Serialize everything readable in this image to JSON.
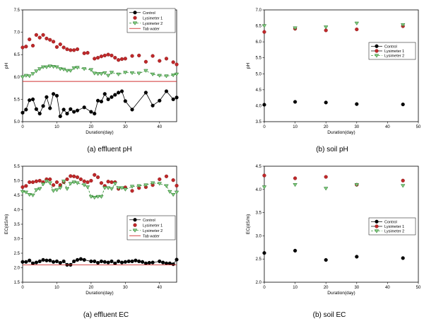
{
  "chart_data": [
    {
      "type": "scatter",
      "caption": "(a)  effluent  pH",
      "xlabel": "Duration(day)",
      "ylabel": "pH",
      "xlim": [
        0,
        45
      ],
      "ylim": [
        5.0,
        7.5
      ],
      "xticks": [
        0,
        10,
        20,
        30,
        40
      ],
      "yticks": [
        5.0,
        5.5,
        6.0,
        6.5,
        7.0,
        7.5
      ],
      "legend_position": "top-right",
      "series": [
        {
          "name": "Control",
          "marker": "circle",
          "color": "#000000",
          "line": true,
          "x": [
            0,
            1,
            2,
            3,
            4,
            5,
            6,
            7,
            8,
            9,
            10,
            11,
            12,
            13,
            14,
            15,
            16,
            18,
            20,
            21,
            22,
            23,
            24,
            25,
            26,
            27,
            28,
            29,
            30,
            32,
            36,
            38,
            40,
            42,
            44,
            45
          ],
          "y": [
            5.2,
            5.27,
            5.48,
            5.5,
            5.28,
            5.18,
            5.35,
            5.55,
            5.3,
            5.62,
            5.58,
            5.12,
            5.27,
            5.18,
            5.28,
            5.22,
            5.25,
            5.32,
            5.22,
            5.18,
            5.47,
            5.45,
            5.62,
            5.5,
            5.55,
            5.6,
            5.65,
            5.68,
            5.46,
            5.27,
            5.65,
            5.36,
            5.47,
            5.68,
            5.5,
            5.54
          ]
        },
        {
          "name": "Lysimeter 1",
          "marker": "circle",
          "color": "#c0282a",
          "line": false,
          "x": [
            0,
            1,
            2,
            3,
            4,
            5,
            6,
            7,
            8,
            9,
            10,
            11,
            12,
            13,
            14,
            15,
            16,
            18,
            19,
            21,
            22,
            23,
            24,
            25,
            26,
            27,
            28,
            29,
            30,
            32,
            34,
            36,
            38,
            40,
            42,
            44,
            45
          ],
          "y": [
            6.66,
            6.68,
            6.84,
            6.7,
            6.94,
            6.88,
            6.94,
            6.86,
            6.83,
            6.79,
            6.67,
            6.73,
            6.66,
            6.62,
            6.6,
            6.6,
            6.62,
            6.53,
            6.54,
            6.41,
            6.43,
            6.46,
            6.48,
            6.5,
            6.48,
            6.43,
            6.38,
            6.4,
            6.41,
            6.47,
            6.48,
            6.34,
            6.47,
            6.36,
            6.41,
            6.33,
            6.28
          ]
        },
        {
          "name": "Lysimeter 2",
          "marker": "triangle-down",
          "color": "#1f8a1f",
          "line": true,
          "x": [
            0,
            1,
            2,
            3,
            4,
            5,
            6,
            7,
            8,
            9,
            10,
            11,
            12,
            13,
            14,
            15,
            16,
            18,
            20,
            21,
            22,
            23,
            24,
            25,
            26,
            28,
            30,
            32,
            34,
            36,
            38,
            40,
            42,
            44,
            45
          ],
          "y": [
            6.0,
            6.03,
            6.02,
            6.07,
            6.13,
            6.18,
            6.22,
            6.22,
            6.24,
            6.23,
            6.22,
            6.18,
            6.17,
            6.14,
            6.14,
            6.2,
            6.21,
            6.18,
            6.16,
            6.08,
            6.07,
            6.07,
            6.09,
            6.03,
            6.1,
            6.06,
            6.1,
            6.09,
            6.08,
            6.14,
            6.06,
            6.03,
            6.02,
            6.04,
            6.06
          ]
        },
        {
          "name": "Tab water",
          "marker": "none",
          "color": "#d03030",
          "line": true,
          "constant": 5.9
        }
      ]
    },
    {
      "type": "scatter",
      "caption": "(b)  soil  pH",
      "xlabel": "Duration(day)",
      "ylabel": "pH",
      "xlim": [
        0,
        50
      ],
      "ylim": [
        3.5,
        7.0
      ],
      "xticks": [
        0,
        10,
        20,
        30,
        40,
        50
      ],
      "yticks": [
        3.5,
        4.0,
        4.5,
        5.0,
        5.5,
        6.0,
        6.5,
        7.0
      ],
      "legend_position": "middle-right",
      "series": [
        {
          "name": "Control",
          "marker": "circle",
          "color": "#000000",
          "x": [
            0,
            10,
            20,
            30,
            45
          ],
          "y": [
            4.03,
            4.12,
            4.1,
            4.05,
            4.04
          ]
        },
        {
          "name": "Lysimeter 1",
          "marker": "circle",
          "color": "#c0282a",
          "x": [
            0,
            10,
            20,
            30,
            45
          ],
          "y": [
            6.31,
            6.41,
            6.36,
            6.39,
            6.49
          ]
        },
        {
          "name": "Lysimeter 2",
          "marker": "triangle-down",
          "color": "#1f8a1f",
          "x": [
            0,
            10,
            20,
            30,
            45
          ],
          "y": [
            6.5,
            6.43,
            6.46,
            6.58,
            6.53
          ]
        }
      ]
    },
    {
      "type": "scatter",
      "caption": "(a)  effluent  EC",
      "xlabel": "Duration(day)",
      "ylabel": "EC(dS/m)",
      "xlim": [
        0,
        45
      ],
      "ylim": [
        1.5,
        5.5
      ],
      "xticks": [
        0,
        10,
        20,
        30,
        40
      ],
      "yticks": [
        1.5,
        2.0,
        2.5,
        3.0,
        3.5,
        4.0,
        4.5,
        5.0,
        5.5
      ],
      "legend_position": "middle-right",
      "series": [
        {
          "name": "Control",
          "marker": "circle",
          "color": "#000000",
          "line": true,
          "x": [
            0,
            1,
            2,
            3,
            4,
            5,
            6,
            7,
            8,
            9,
            10,
            11,
            12,
            13,
            14,
            15,
            16,
            17,
            18,
            20,
            21,
            22,
            23,
            24,
            25,
            26,
            27,
            28,
            29,
            30,
            31,
            32,
            33,
            34,
            35,
            36,
            37,
            38,
            40,
            41,
            42,
            43,
            44,
            45
          ],
          "y": [
            2.2,
            2.2,
            2.25,
            2.15,
            2.18,
            2.22,
            2.27,
            2.25,
            2.25,
            2.2,
            2.22,
            2.17,
            2.22,
            2.1,
            2.1,
            2.22,
            2.27,
            2.3,
            2.27,
            2.22,
            2.22,
            2.17,
            2.22,
            2.2,
            2.18,
            2.22,
            2.15,
            2.22,
            2.18,
            2.2,
            2.22,
            2.22,
            2.25,
            2.22,
            2.2,
            2.15,
            2.17,
            2.18,
            2.22,
            2.18,
            2.15,
            2.15,
            2.12,
            2.28
          ]
        },
        {
          "name": "Lysimeter 1",
          "marker": "circle",
          "color": "#c0282a",
          "line": false,
          "x": [
            0,
            1,
            2,
            3,
            4,
            5,
            6,
            7,
            8,
            9,
            10,
            11,
            12,
            13,
            14,
            15,
            16,
            17,
            18,
            19,
            20,
            21,
            22,
            23,
            24,
            25,
            26,
            27,
            28,
            30,
            32,
            34,
            36,
            38,
            40,
            42,
            44,
            45
          ],
          "y": [
            4.78,
            4.82,
            4.95,
            4.95,
            4.98,
            5.0,
            4.95,
            5.05,
            5.05,
            4.85,
            4.95,
            4.85,
            4.95,
            5.05,
            5.16,
            5.15,
            5.12,
            5.05,
            4.98,
            4.95,
            5.0,
            5.2,
            5.12,
            4.92,
            4.82,
            4.97,
            4.95,
            4.95,
            4.72,
            4.77,
            4.65,
            4.75,
            4.78,
            4.85,
            5.05,
            5.15,
            5.02,
            4.83
          ]
        },
        {
          "name": "Lysimeter 2",
          "marker": "triangle-down",
          "color": "#1f8a1f",
          "line": true,
          "x": [
            0,
            1,
            2,
            3,
            4,
            5,
            6,
            7,
            8,
            9,
            10,
            11,
            12,
            13,
            14,
            15,
            16,
            18,
            19,
            20,
            21,
            22,
            23,
            24,
            25,
            26,
            27,
            28,
            29,
            30,
            32,
            34,
            36,
            38,
            40,
            42,
            43,
            44,
            45
          ],
          "y": [
            4.62,
            4.6,
            4.52,
            4.5,
            4.68,
            4.72,
            4.88,
            4.98,
            4.92,
            4.65,
            4.68,
            4.75,
            4.98,
            4.72,
            4.9,
            4.95,
            4.92,
            4.85,
            4.78,
            4.45,
            4.42,
            4.45,
            4.45,
            4.75,
            4.75,
            4.72,
            4.9,
            4.75,
            4.75,
            4.7,
            4.8,
            4.82,
            4.85,
            4.92,
            4.9,
            4.82,
            4.62,
            4.52,
            4.6
          ]
        },
        {
          "name": "Tab water",
          "marker": "none",
          "color": "#d03030",
          "line": true,
          "constant": 2.1
        }
      ]
    },
    {
      "type": "scatter",
      "caption": "(b)  soil  EC",
      "xlabel": "Duration(day)",
      "ylabel": "EC(dS/m)",
      "xlim": [
        0,
        50
      ],
      "ylim": [
        2.0,
        4.5
      ],
      "xticks": [
        0,
        10,
        20,
        30,
        40,
        50
      ],
      "yticks": [
        2.0,
        2.5,
        3.0,
        3.5,
        4.0,
        4.5
      ],
      "legend_position": "middle-right",
      "series": [
        {
          "name": "Control",
          "marker": "circle",
          "color": "#000000",
          "x": [
            0,
            10,
            20,
            30,
            45
          ],
          "y": [
            2.63,
            2.68,
            2.48,
            2.55,
            2.52
          ]
        },
        {
          "name": "Lysimeter 1",
          "marker": "circle",
          "color": "#c0282a",
          "x": [
            0,
            10,
            20,
            30,
            45
          ],
          "y": [
            4.3,
            4.24,
            4.27,
            4.1,
            4.19
          ]
        },
        {
          "name": "Lysimeter 2",
          "marker": "triangle-down",
          "color": "#1f8a1f",
          "x": [
            0,
            10,
            20,
            30,
            45
          ],
          "y": [
            4.05,
            4.1,
            4.02,
            4.1,
            4.08
          ]
        }
      ]
    }
  ]
}
